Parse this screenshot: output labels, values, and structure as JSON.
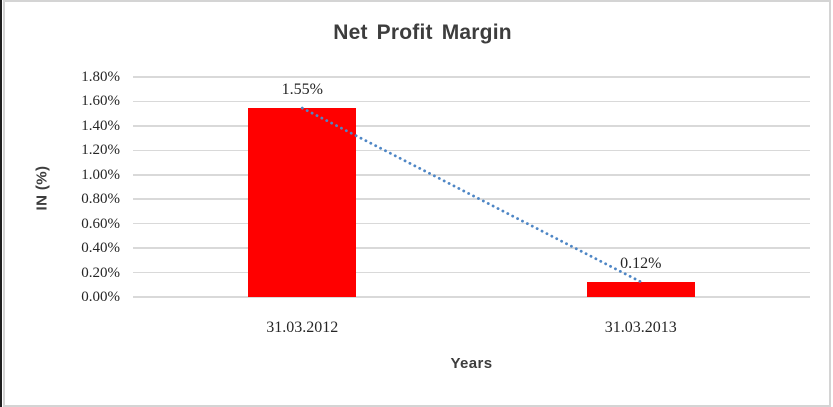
{
  "chart_data": {
    "type": "bar",
    "title": "Net Profit Margin",
    "xlabel": "Years",
    "ylabel": "IN (%)",
    "categories": [
      "31.03.2012",
      "31.03.2013"
    ],
    "series": [
      {
        "name": "Net Profit Margin",
        "values": [
          1.55,
          0.12
        ],
        "labels": [
          "1.55%",
          "0.12%"
        ],
        "color": "#ff0000"
      }
    ],
    "trendline": {
      "type": "linear",
      "style": "dotted",
      "color": "#4e86c5"
    },
    "ylim": [
      0,
      1.8
    ],
    "ytick_step": 0.2,
    "yticks": [
      "1.80%",
      "1.60%",
      "1.40%",
      "1.20%",
      "1.00%",
      "0.80%",
      "0.60%",
      "0.40%",
      "0.20%",
      "0.00%"
    ],
    "grid": true,
    "legend": false,
    "gridline_color": "#d9d9d9"
  }
}
